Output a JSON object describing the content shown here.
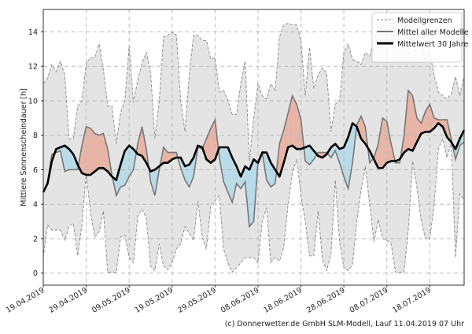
{
  "chart_data": {
    "type": "area",
    "title": "",
    "ylabel": "Mittlere Sonnenscheindauer [h]",
    "xlabel": "",
    "footer": "(c) Donnerwetter.de GmbH SLM-Modell, Lauf 11.04.2019 07 Uhr",
    "start_date": "19.04.2019",
    "x_unit": "days since 19.04.2019",
    "xlim": [
      0,
      98
    ],
    "ylim": [
      -0.7,
      15.3
    ],
    "grid": true,
    "legend_position": "top-right",
    "x_ticks": [
      {
        "day": 0,
        "label": "19.04.2019"
      },
      {
        "day": 10,
        "label": "29.04.2019"
      },
      {
        "day": 20,
        "label": "09.05.2019"
      },
      {
        "day": 30,
        "label": "19.05.2019"
      },
      {
        "day": 40,
        "label": "29.05.2019"
      },
      {
        "day": 50,
        "label": "08.06.2019"
      },
      {
        "day": 60,
        "label": "18.06.2019"
      },
      {
        "day": 70,
        "label": "28.06.2019"
      },
      {
        "day": 80,
        "label": "08.07.2019"
      },
      {
        "day": 90,
        "label": "18.07.2019"
      }
    ],
    "y_ticks": [
      0,
      2,
      4,
      6,
      8,
      10,
      12,
      14
    ],
    "legend": [
      "Modellgrenzen",
      "Mittel aller Modelle",
      "Mittelwert 30 Jahre"
    ],
    "colors": {
      "band": "#e4e4e4",
      "bound_line": "#8a8a8a",
      "model_mean": "#777777",
      "clim_mean": "#000000",
      "above": "#e8b4a6",
      "below": "#b9dbe8"
    },
    "series": [
      {
        "name": "Modellgrenzen (oben)",
        "values": [
          11.0,
          11.3,
          12.1,
          11.7,
          12.3,
          11.5,
          7.8,
          7.8,
          9.7,
          10.0,
          12.2,
          12.5,
          12.5,
          13.3,
          11.8,
          9.7,
          9.7,
          7.5,
          9.3,
          10.0,
          13.2,
          9.9,
          11.2,
          12.2,
          12.8,
          11.6,
          7.8,
          10.0,
          13.7,
          13.8,
          14.0,
          13.8,
          10.0,
          8.2,
          11.5,
          13.8,
          13.8,
          13.5,
          13.5,
          12.4,
          12.5,
          10.5,
          10.6,
          10.0,
          9.2,
          9.2,
          11.0,
          12.3,
          6.5,
          9.0,
          11.0,
          10.3,
          10.1,
          11.0,
          10.6,
          13.7,
          14.4,
          14.5,
          14.4,
          14.4,
          13.5,
          10.3,
          13.1,
          10.7,
          11.5,
          11.9,
          11.6,
          8.2,
          9.8,
          10.0,
          12.8,
          13.3,
          12.4,
          12.3,
          12.1,
          12.8,
          12.6,
          13.5,
          14.2,
          14.6,
          14.7,
          14.5,
          14.5,
          14.5,
          14.5,
          14.3,
          14.0,
          12.3,
          12.6,
          13.3,
          12.8,
          11.5,
          10.5,
          10.3,
          10.1,
          10.4,
          11.4,
          10.3,
          11.4
        ]
      },
      {
        "name": "Modellgrenzen (unten)",
        "values": [
          0.9,
          2.8,
          2.5,
          2.5,
          2.5,
          1.9,
          2.7,
          2.9,
          1.0,
          2.8,
          5.8,
          3.5,
          2.1,
          2.4,
          3.6,
          0.05,
          0.05,
          0.05,
          2.1,
          2.2,
          0.9,
          0.6,
          3.3,
          3.7,
          3.2,
          0.4,
          0.15,
          1.7,
          0.4,
          0.2,
          0.6,
          1.4,
          1.7,
          2.7,
          2.3,
          1.9,
          4.2,
          2.1,
          1.4,
          3.9,
          4.2,
          4.5,
          1.4,
          0.6,
          0.05,
          0.3,
          0.6,
          0.9,
          0.9,
          0.9,
          0.6,
          3.0,
          3.8,
          0.6,
          0.9,
          0.7,
          1.5,
          4.0,
          5.8,
          6.6,
          4.5,
          3.0,
          1.0,
          1.0,
          3.6,
          0.8,
          0.15,
          1.1,
          5.4,
          1.8,
          0.3,
          0.15,
          0.5,
          3.0,
          4.8,
          6.2,
          4.0,
          1.8,
          3.1,
          2.0,
          1.9,
          1.7,
          0.05,
          0.05,
          0.05,
          2.5,
          6.5,
          5.0,
          3.0,
          2.0,
          2.0,
          3.9,
          7.2,
          7.8,
          6.7,
          7.5,
          0.9,
          4.6,
          4.2
        ]
      },
      {
        "name": "Mittel aller Modelle",
        "values": [
          4.7,
          5.3,
          6.9,
          7.0,
          7.1,
          5.9,
          6.0,
          6.0,
          6.0,
          7.4,
          8.5,
          8.4,
          8.1,
          8.0,
          8.1,
          7.2,
          5.7,
          4.5,
          5.0,
          5.1,
          5.6,
          6.0,
          7.5,
          8.5,
          7.2,
          5.3,
          4.5,
          6.0,
          7.3,
          7.0,
          7.0,
          7.0,
          6.1,
          5.4,
          5.0,
          5.6,
          7.3,
          7.2,
          7.8,
          8.4,
          8.9,
          6.7,
          5.3,
          4.7,
          4.1,
          5.2,
          4.9,
          5.3,
          2.7,
          3.0,
          6.5,
          7.0,
          5.4,
          5.0,
          5.2,
          7.5,
          8.3,
          9.3,
          10.3,
          9.8,
          8.9,
          6.5,
          6.3,
          6.6,
          7.0,
          7.0,
          7.0,
          6.7,
          7.1,
          6.4,
          5.6,
          4.9,
          6.4,
          8.6,
          9.1,
          8.5,
          6.4,
          6.7,
          7.5,
          9.0,
          8.8,
          7.5,
          6.4,
          6.4,
          8.0,
          10.6,
          10.3,
          9.0,
          8.7,
          9.4,
          9.8,
          9.0,
          8.9,
          8.9,
          8.9,
          7.8,
          6.6,
          7.4,
          7.6
        ]
      },
      {
        "name": "Mittelwert 30 Jahre",
        "values": [
          4.7,
          5.2,
          6.5,
          7.2,
          7.3,
          7.4,
          7.2,
          6.9,
          6.3,
          5.8,
          5.7,
          5.7,
          5.9,
          6.1,
          6.1,
          5.9,
          5.6,
          5.4,
          6.3,
          7.1,
          7.4,
          7.2,
          6.9,
          6.8,
          6.4,
          5.9,
          6.0,
          6.2,
          6.4,
          6.4,
          6.6,
          6.7,
          6.7,
          6.2,
          6.3,
          6.7,
          7.4,
          7.3,
          6.6,
          6.4,
          6.6,
          7.3,
          7.3,
          7.3,
          6.7,
          6.2,
          5.6,
          6.2,
          6.0,
          6.6,
          6.4,
          7.0,
          7.0,
          6.4,
          6.0,
          5.6,
          6.4,
          7.3,
          7.4,
          7.2,
          7.2,
          7.3,
          7.4,
          7.1,
          6.8,
          6.7,
          6.9,
          7.3,
          7.5,
          7.2,
          7.3,
          7.9,
          8.7,
          8.5,
          7.8,
          7.5,
          7.1,
          6.6,
          6.1,
          6.1,
          6.4,
          6.5,
          6.5,
          6.6,
          7.0,
          7.2,
          7.1,
          7.6,
          8.1,
          8.2,
          8.2,
          8.4,
          8.7,
          8.5,
          7.9,
          7.6,
          7.2,
          7.8,
          8.3
        ]
      }
    ]
  }
}
